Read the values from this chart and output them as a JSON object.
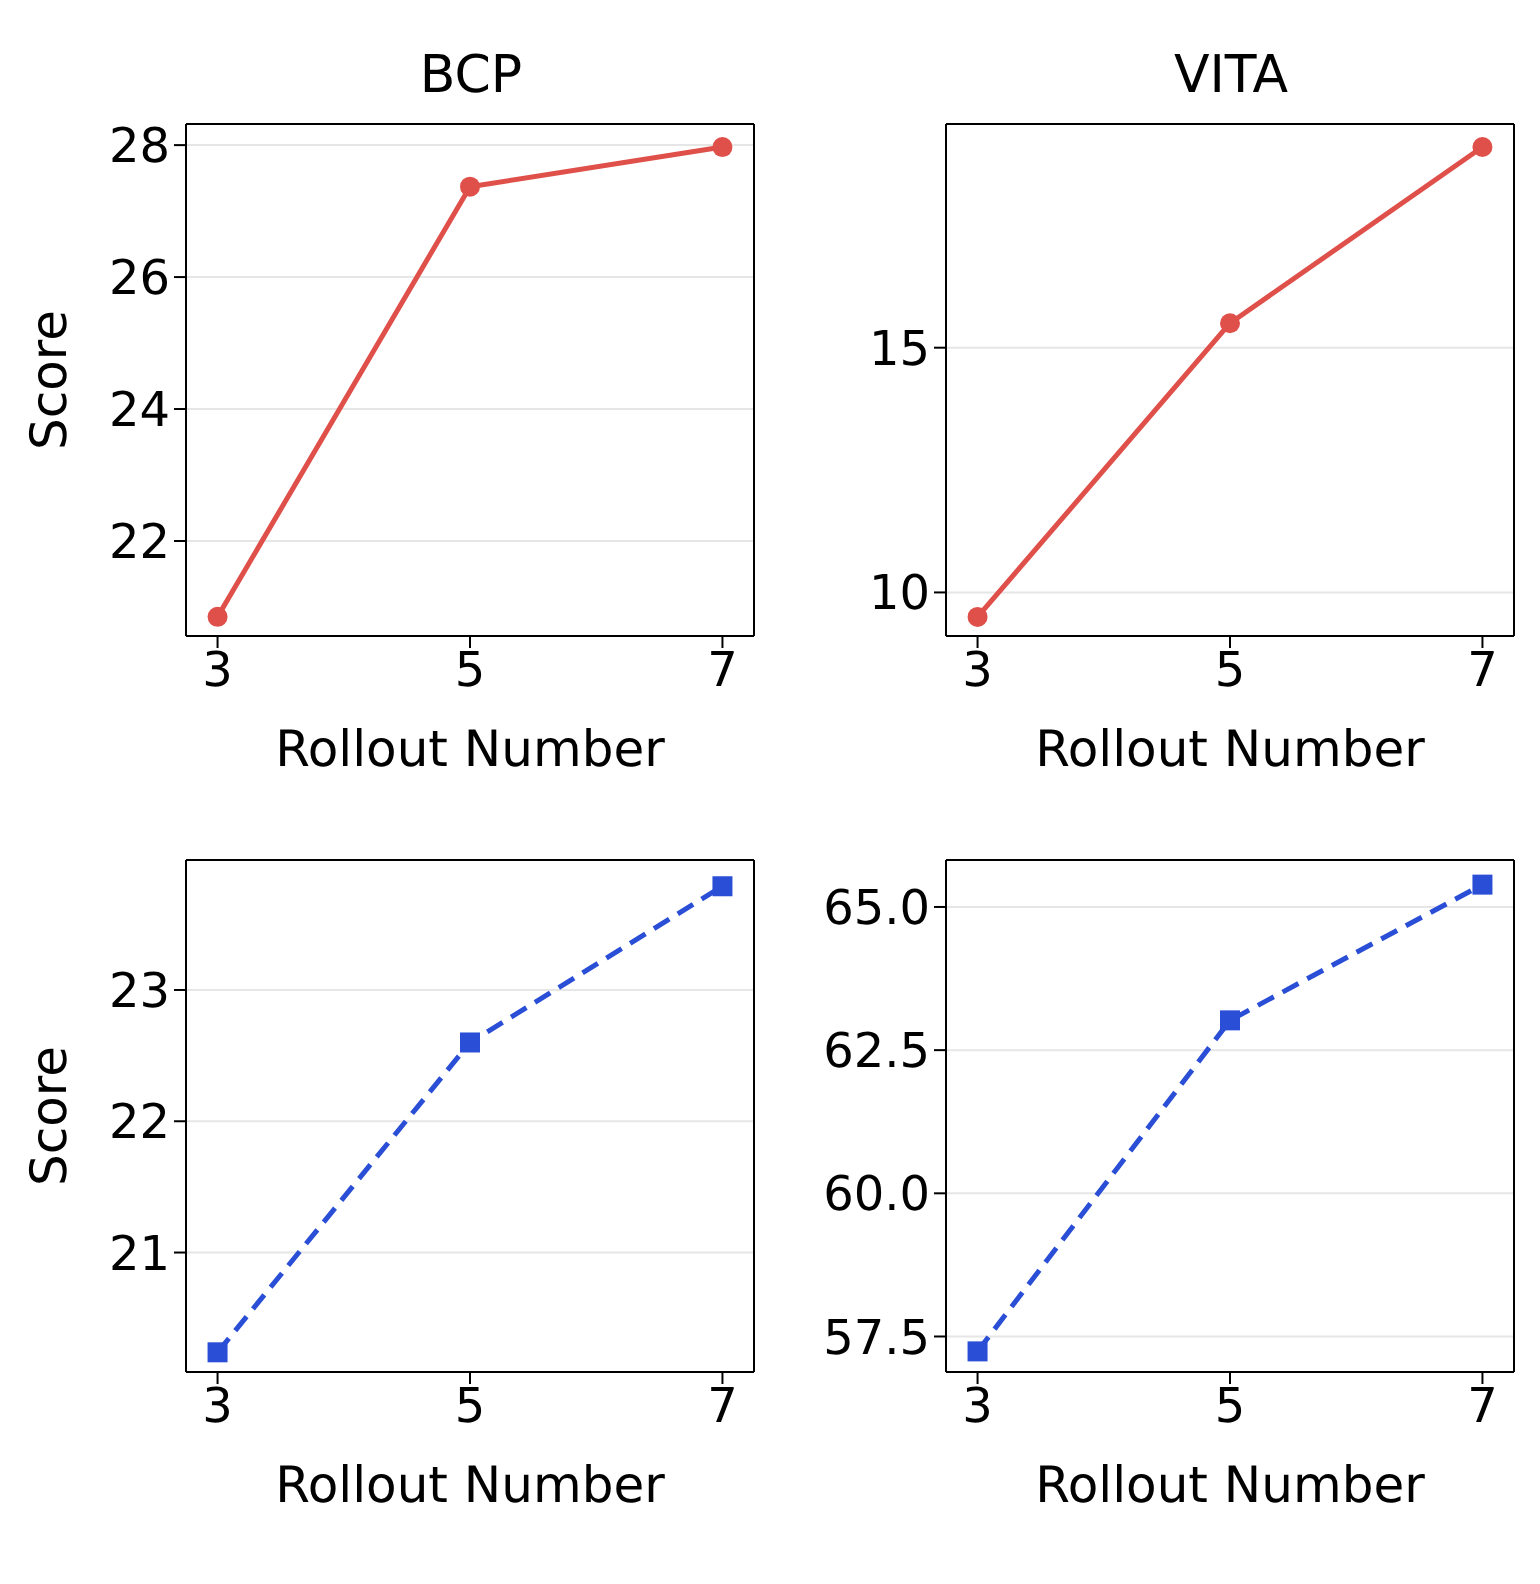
{
  "chart_data": [
    {
      "type": "line",
      "title": "BCP",
      "xlabel": "Rollout Number",
      "ylabel": "Score",
      "x": [
        3,
        5,
        7
      ],
      "xlim": [
        2.75,
        7.25
      ],
      "xticks": [
        3,
        5,
        7
      ],
      "ylim": [
        20.56,
        28.32
      ],
      "yticks": [
        22,
        24,
        26,
        28
      ],
      "grid": "y",
      "marker": "circle",
      "line_style": "solid",
      "series": [
        {
          "color": "#e0504a",
          "values": [
            20.85,
            27.37,
            27.97
          ]
        }
      ]
    },
    {
      "type": "line",
      "title": "VITA",
      "xlabel": "Rollout Number",
      "x": [
        3,
        5,
        7
      ],
      "xlim": [
        2.75,
        7.25
      ],
      "xticks": [
        3,
        5,
        7
      ],
      "ylim": [
        9.11,
        19.57
      ],
      "yticks": [
        10,
        15
      ],
      "grid": "y",
      "marker": "circle",
      "line_style": "solid",
      "series": [
        {
          "color": "#e0504a",
          "values": [
            9.5,
            15.5,
            19.1
          ]
        }
      ]
    },
    {
      "type": "line",
      "xlabel": "Rollout Number",
      "ylabel": "Score",
      "x": [
        3,
        5,
        7
      ],
      "xlim": [
        2.75,
        7.25
      ],
      "xticks": [
        3,
        5,
        7
      ],
      "ylim": [
        20.09,
        23.99
      ],
      "yticks": [
        21,
        22,
        23
      ],
      "grid": "y",
      "marker": "square",
      "line_style": "dashed",
      "series": [
        {
          "color": "#2a4fd6",
          "values": [
            20.24,
            22.6,
            23.79
          ]
        }
      ]
    },
    {
      "type": "line",
      "xlabel": "Rollout Number",
      "x": [
        3,
        5,
        7
      ],
      "xlim": [
        2.75,
        7.25
      ],
      "xticks": [
        3,
        5,
        7
      ],
      "ylim": [
        56.88,
        65.82
      ],
      "yticks": [
        {
          "value": 57.5,
          "label": "57.5"
        },
        {
          "value": 60,
          "label": "60.0"
        },
        {
          "value": 62.5,
          "label": "62.5"
        },
        {
          "value": 65,
          "label": "65.0"
        }
      ],
      "grid": "y",
      "marker": "square",
      "line_style": "dashed",
      "series": [
        {
          "color": "#2a4fd6",
          "values": [
            57.24,
            63.02,
            65.39
          ]
        }
      ]
    }
  ]
}
